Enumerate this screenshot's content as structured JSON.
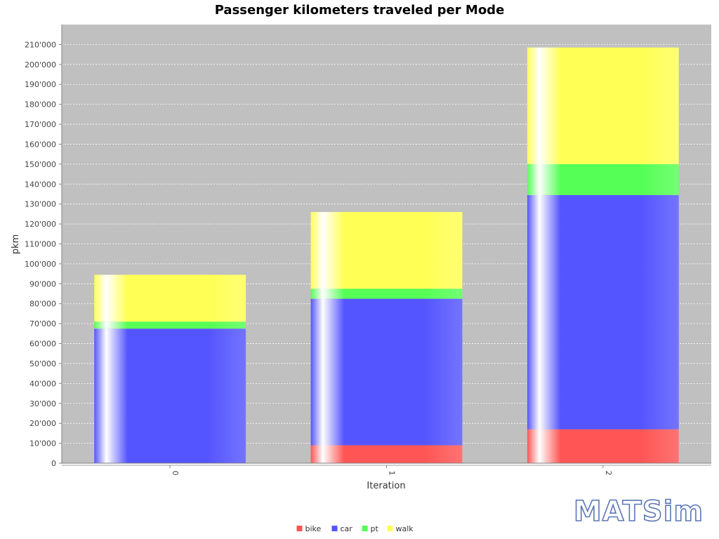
{
  "logo": {
    "text": "MATSim"
  },
  "chart_data": {
    "type": "bar",
    "stacked": true,
    "title": "Passenger kilometers traveled per Mode",
    "xlabel": "Iteration",
    "ylabel": "pkm",
    "categories": [
      "0",
      "1",
      "2"
    ],
    "ylim": [
      0,
      220000
    ],
    "yticks": [
      0,
      10000,
      20000,
      30000,
      40000,
      50000,
      60000,
      70000,
      80000,
      90000,
      100000,
      110000,
      120000,
      130000,
      140000,
      150000,
      160000,
      170000,
      180000,
      190000,
      200000,
      210000
    ],
    "ytick_labels": [
      "0",
      "10'000",
      "20'000",
      "30'000",
      "40'000",
      "50'000",
      "60'000",
      "70'000",
      "80'000",
      "90'000",
      "100'000",
      "110'000",
      "120'000",
      "130'000",
      "140'000",
      "150'000",
      "160'000",
      "170'000",
      "180'000",
      "190'000",
      "200'000",
      "210'000"
    ],
    "grid": true,
    "legend_position": "bottom",
    "series": [
      {
        "name": "bike",
        "color": "#ff5555",
        "values": [
          0,
          9000,
          17000
        ]
      },
      {
        "name": "car",
        "color": "#5555ff",
        "values": [
          67500,
          73500,
          117500
        ]
      },
      {
        "name": "pt",
        "color": "#55ff55",
        "values": [
          3500,
          5000,
          15500
        ]
      },
      {
        "name": "walk",
        "color": "#ffff55",
        "values": [
          23500,
          38500,
          58500
        ]
      }
    ]
  }
}
